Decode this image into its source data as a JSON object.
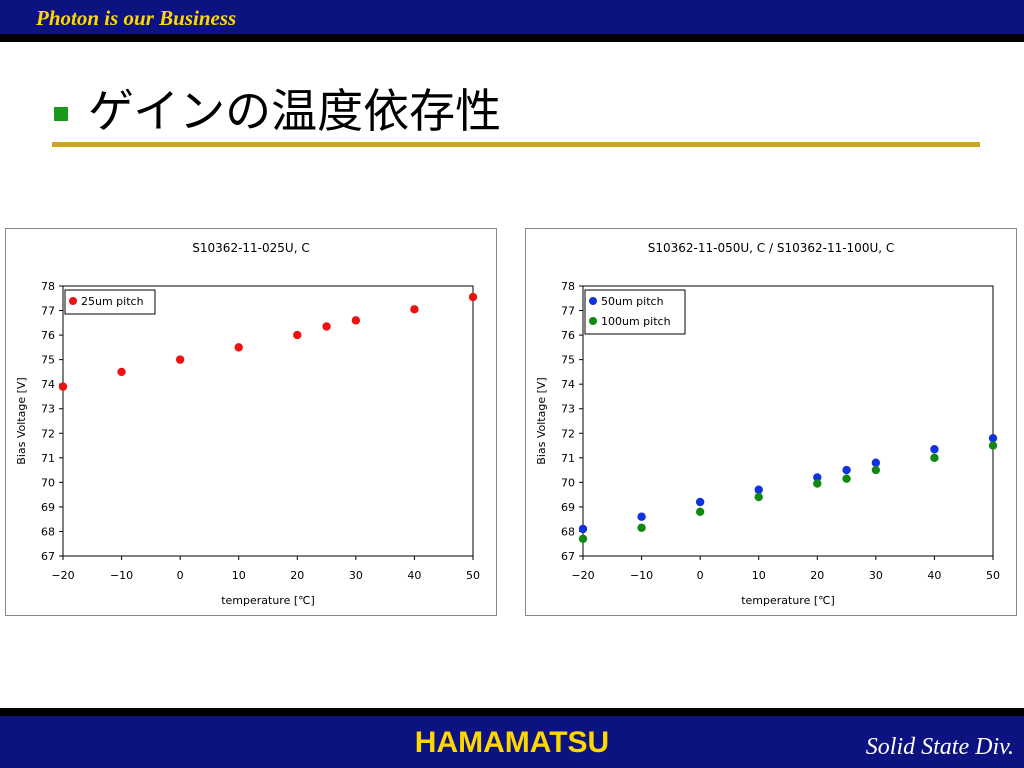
{
  "header": {
    "tagline": "Photon is our Business"
  },
  "slide": {
    "title": "ゲインの温度依存性"
  },
  "footer": {
    "brand": "HAMAMATSU",
    "division": "Solid State Div."
  },
  "colors": {
    "bar": "#0c1380",
    "accent_text": "#ffd700",
    "rule": "#c9a522",
    "bullet": "#1a9a1a"
  },
  "chart_data": [
    {
      "type": "scatter",
      "title": "S10362-11-025U, C",
      "xlabel": "temperature [℃]",
      "ylabel": "Bias Voltage [V]",
      "xlim": [
        -20,
        50
      ],
      "ylim": [
        67,
        78
      ],
      "xticks": [
        -20,
        -10,
        0,
        10,
        20,
        30,
        40,
        50
      ],
      "xtick_labels": [
        "−20",
        "−10",
        "0",
        "10",
        "20",
        "30",
        "40",
        "50"
      ],
      "yticks": [
        67,
        68,
        69,
        70,
        71,
        72,
        73,
        74,
        75,
        76,
        77,
        78
      ],
      "grid": false,
      "legend": "top-left",
      "series": [
        {
          "name": "25um pitch",
          "color": "#ee1111",
          "x": [
            -20,
            -10,
            0,
            10,
            20,
            25,
            30,
            40,
            50
          ],
          "y": [
            73.9,
            74.5,
            75.0,
            75.5,
            76.0,
            76.35,
            76.6,
            77.05,
            77.55
          ]
        }
      ]
    },
    {
      "type": "scatter",
      "title": "S10362-11-050U, C / S10362-11-100U, C",
      "xlabel": "temperature [℃]",
      "ylabel": "Bias Voltage [V]",
      "xlim": [
        -20,
        50
      ],
      "ylim": [
        67,
        78
      ],
      "xticks": [
        -20,
        -10,
        0,
        10,
        20,
        30,
        40,
        50
      ],
      "xtick_labels": [
        "−20",
        "−10",
        "0",
        "10",
        "20",
        "30",
        "40",
        "50"
      ],
      "yticks": [
        67,
        68,
        69,
        70,
        71,
        72,
        73,
        74,
        75,
        76,
        77,
        78
      ],
      "grid": false,
      "legend": "top-left",
      "series": [
        {
          "name": "50um pitch",
          "color": "#1133dd",
          "x": [
            -20,
            -10,
            0,
            10,
            20,
            25,
            30,
            40,
            50
          ],
          "y": [
            68.1,
            68.6,
            69.2,
            69.7,
            70.2,
            70.5,
            70.8,
            71.35,
            71.8
          ]
        },
        {
          "name": "100um pitch",
          "color": "#118811",
          "x": [
            -20,
            -10,
            0,
            10,
            20,
            25,
            30,
            40,
            50
          ],
          "y": [
            67.7,
            68.15,
            68.8,
            69.4,
            69.95,
            70.15,
            70.5,
            71.0,
            71.5
          ]
        }
      ]
    }
  ]
}
